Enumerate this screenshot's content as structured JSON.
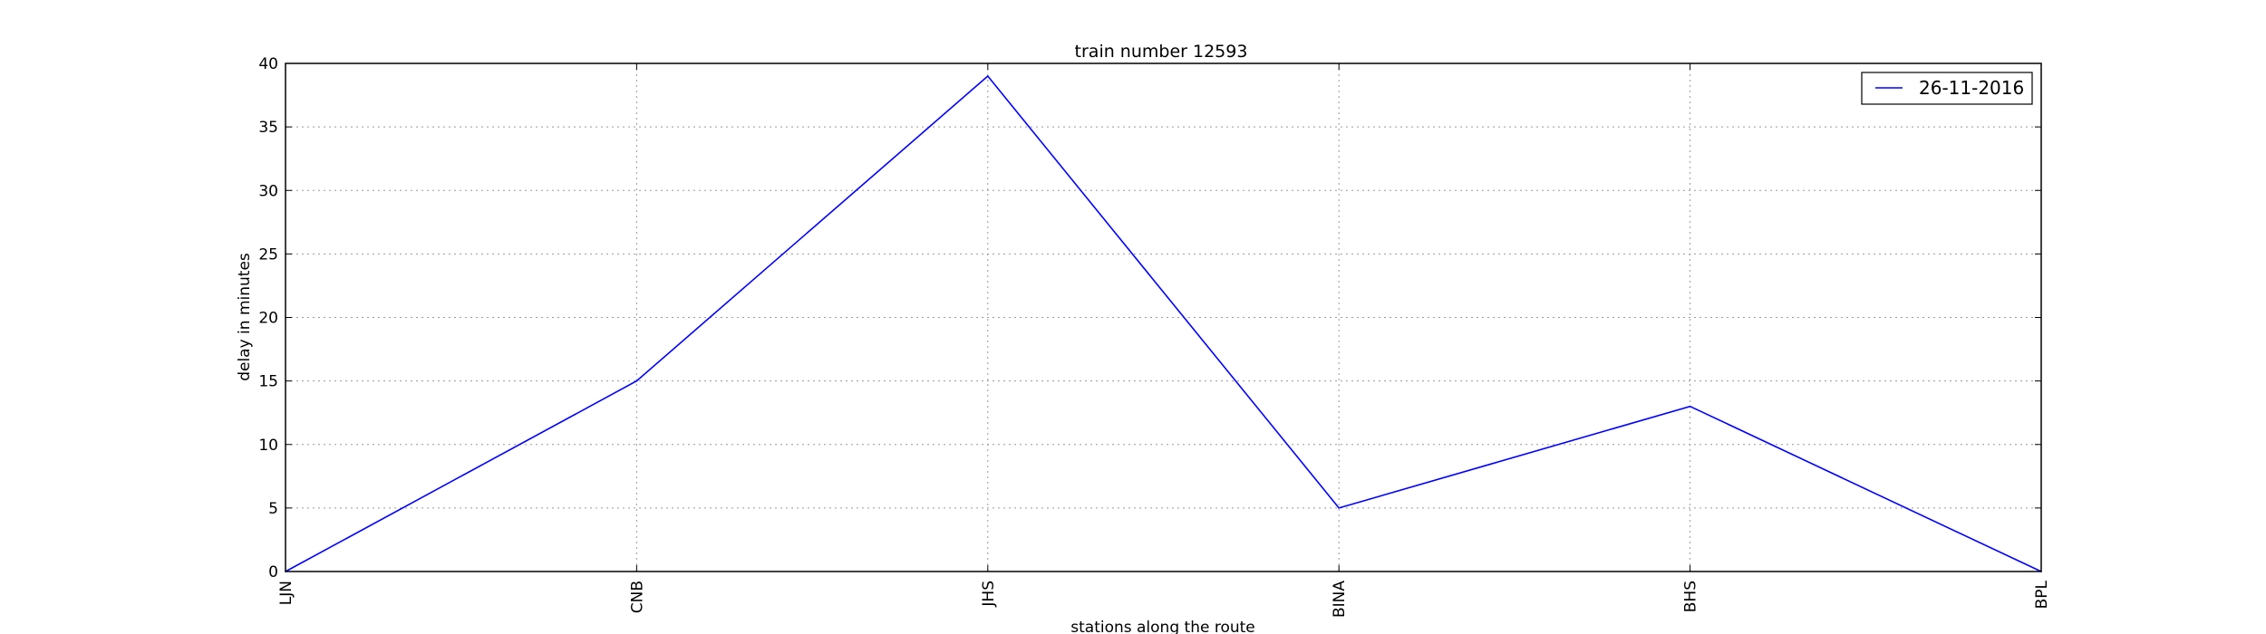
{
  "chart_data": {
    "type": "line",
    "title": "train number 12593",
    "xlabel": "stations along the route",
    "ylabel": "delay in minutes",
    "categories": [
      "LJN",
      "CNB",
      "JHS",
      "BINA",
      "BHS",
      "BPL"
    ],
    "ylim": [
      0,
      40
    ],
    "yticks": [
      0,
      5,
      10,
      15,
      20,
      25,
      30,
      35,
      40
    ],
    "grid": true,
    "legend_position": "top-right",
    "series": [
      {
        "name": "26-11-2016",
        "color": "#0000ff",
        "values": [
          0,
          15,
          39,
          5,
          13,
          0
        ]
      }
    ]
  }
}
